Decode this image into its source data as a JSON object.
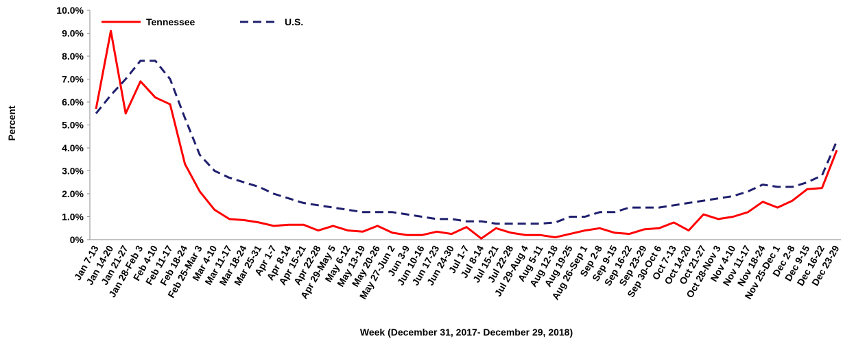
{
  "chart_data": {
    "type": "line",
    "y_label": "Percent",
    "x_label": "Week (December 31, 2017- December 29, 2018)",
    "categories": [
      "Jan 7-13",
      "Jan 14-20",
      "Jan 21-27",
      "Jan 28-Feb 3",
      "Feb 4-10",
      "Feb 11-17",
      "Feb 18-24",
      "Feb 25-Mar 3",
      "Mar 4-10",
      "Mar 11-17",
      "Mar 18-24",
      "Mar 25-31",
      "Apr 1-7",
      "Apr 8-14",
      "Apr 15-21",
      "Apr 22-28",
      "Apr 29-May 5",
      "May 6-12",
      "May 13-19",
      "May 20-26",
      "May 27-Jun 2",
      "Jun 3-9",
      "Jun 10-16",
      "Jun 17-23",
      "Jun 24-30",
      "Jul 1-7",
      "Jul 8-14",
      "Jul 15-21",
      "Jul 22-28",
      "Jul 29-Aug 4",
      "Aug 5-11",
      "Aug 12-18",
      "Aug 19-25",
      "Aug 26-Sep 1",
      "Sep 2-8",
      "Sep 9-15",
      "Sep 16-22",
      "Sep 23-29",
      "Sep 30-Oct 6",
      "Oct 7-13",
      "Oct 14-20",
      "Oct 21-27",
      "Oct 28-Nov 3",
      "Nov 4-10",
      "Nov 11-17",
      "Nov 18-24",
      "Nov 25-Dec 1",
      "Dec 2-8",
      "Dec 9-15",
      "Dec 16-22",
      "Dec 23-29"
    ],
    "series": [
      {
        "name": "Tennessee",
        "color": "#ff0000",
        "dash": false,
        "values": [
          5.7,
          9.1,
          5.5,
          6.9,
          6.2,
          5.9,
          3.3,
          2.1,
          1.3,
          0.9,
          0.85,
          0.75,
          0.6,
          0.65,
          0.65,
          0.4,
          0.6,
          0.4,
          0.35,
          0.6,
          0.3,
          0.2,
          0.2,
          0.35,
          0.25,
          0.55,
          0.05,
          0.5,
          0.3,
          0.2,
          0.2,
          0.1,
          0.25,
          0.4,
          0.5,
          0.3,
          0.25,
          0.45,
          0.5,
          0.75,
          0.4,
          1.1,
          0.9,
          1.0,
          1.2,
          1.65,
          1.4,
          1.7,
          2.2,
          2.25,
          3.9
        ]
      },
      {
        "name": "U.S.",
        "color": "#1f1f6e",
        "dash": true,
        "values": [
          5.5,
          6.3,
          7.0,
          7.8,
          7.8,
          7.0,
          5.3,
          3.7,
          3.0,
          2.7,
          2.5,
          2.3,
          2.0,
          1.8,
          1.6,
          1.5,
          1.4,
          1.3,
          1.2,
          1.2,
          1.2,
          1.1,
          1.0,
          0.9,
          0.9,
          0.8,
          0.8,
          0.7,
          0.7,
          0.7,
          0.7,
          0.75,
          1.0,
          1.0,
          1.2,
          1.2,
          1.4,
          1.4,
          1.4,
          1.5,
          1.6,
          1.7,
          1.8,
          1.9,
          2.1,
          2.4,
          2.3,
          2.3,
          2.5,
          2.8,
          4.3
        ]
      }
    ],
    "ylim": [
      0,
      10
    ],
    "yticks": [
      {
        "value": 0,
        "label": "0%"
      },
      {
        "value": 1,
        "label": "1.0%"
      },
      {
        "value": 2,
        "label": "2.0%"
      },
      {
        "value": 3,
        "label": "3.0%"
      },
      {
        "value": 4,
        "label": "4.0%"
      },
      {
        "value": 5,
        "label": "5.0%"
      },
      {
        "value": 6,
        "label": "6.0%"
      },
      {
        "value": 7,
        "label": "7.0%"
      },
      {
        "value": 8,
        "label": "8.0%"
      },
      {
        "value": 9,
        "label": "9.0%"
      },
      {
        "value": 10,
        "label": "10.0%"
      }
    ],
    "grid": false,
    "legend": "top-left"
  }
}
